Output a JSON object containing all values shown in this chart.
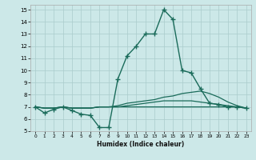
{
  "title": "",
  "xlabel": "Humidex (Indice chaleur)",
  "background_color": "#cce8e8",
  "grid_color": "#aacccc",
  "line_color": "#1a6b5a",
  "xlim": [
    -0.5,
    23.5
  ],
  "ylim": [
    5,
    15.4
  ],
  "yticks": [
    5,
    6,
    7,
    8,
    9,
    10,
    11,
    12,
    13,
    14,
    15
  ],
  "xticks": [
    0,
    1,
    2,
    3,
    4,
    5,
    6,
    7,
    8,
    9,
    10,
    11,
    12,
    13,
    14,
    15,
    16,
    17,
    18,
    19,
    20,
    21,
    22,
    23
  ],
  "series_main": {
    "x": [
      0,
      1,
      2,
      3,
      4,
      5,
      6,
      7,
      8,
      9,
      10,
      11,
      12,
      13,
      14,
      15,
      16,
      17,
      18,
      19,
      20,
      21,
      22,
      23
    ],
    "y": [
      7.0,
      6.5,
      6.8,
      7.0,
      6.7,
      6.4,
      6.3,
      5.3,
      5.3,
      9.3,
      11.2,
      12.0,
      13.0,
      13.0,
      15.0,
      14.2,
      10.0,
      9.8,
      8.5,
      7.3,
      7.2,
      7.0,
      7.0,
      6.9
    ]
  },
  "series_lines": [
    {
      "x": [
        0,
        1,
        2,
        3,
        4,
        5,
        6,
        7,
        8,
        9,
        10,
        11,
        12,
        13,
        14,
        15,
        16,
        17,
        18,
        19,
        20,
        21,
        22,
        23
      ],
      "y": [
        7.0,
        6.9,
        6.9,
        7.0,
        6.9,
        6.9,
        6.9,
        7.0,
        7.0,
        7.1,
        7.3,
        7.4,
        7.5,
        7.6,
        7.8,
        7.9,
        8.1,
        8.2,
        8.3,
        8.1,
        7.8,
        7.4,
        7.1,
        6.9
      ]
    },
    {
      "x": [
        0,
        1,
        2,
        3,
        4,
        5,
        6,
        7,
        8,
        9,
        10,
        11,
        12,
        13,
        14,
        15,
        16,
        17,
        18,
        19,
        20,
        21,
        22,
        23
      ],
      "y": [
        7.0,
        6.9,
        6.9,
        7.0,
        6.9,
        6.9,
        6.9,
        7.0,
        7.0,
        7.0,
        7.1,
        7.2,
        7.3,
        7.4,
        7.5,
        7.5,
        7.5,
        7.5,
        7.4,
        7.3,
        7.2,
        7.1,
        7.0,
        6.9
      ]
    },
    {
      "x": [
        0,
        1,
        2,
        3,
        4,
        5,
        6,
        7,
        8,
        9,
        10,
        11,
        12,
        13,
        14,
        15,
        16,
        17,
        18,
        19,
        20,
        21,
        22,
        23
      ],
      "y": [
        7.0,
        6.9,
        6.9,
        7.0,
        6.9,
        6.9,
        6.9,
        7.0,
        7.0,
        7.0,
        7.0,
        7.0,
        7.0,
        7.0,
        7.0,
        7.0,
        7.0,
        7.0,
        7.0,
        7.0,
        7.0,
        7.0,
        7.0,
        6.9
      ]
    }
  ]
}
